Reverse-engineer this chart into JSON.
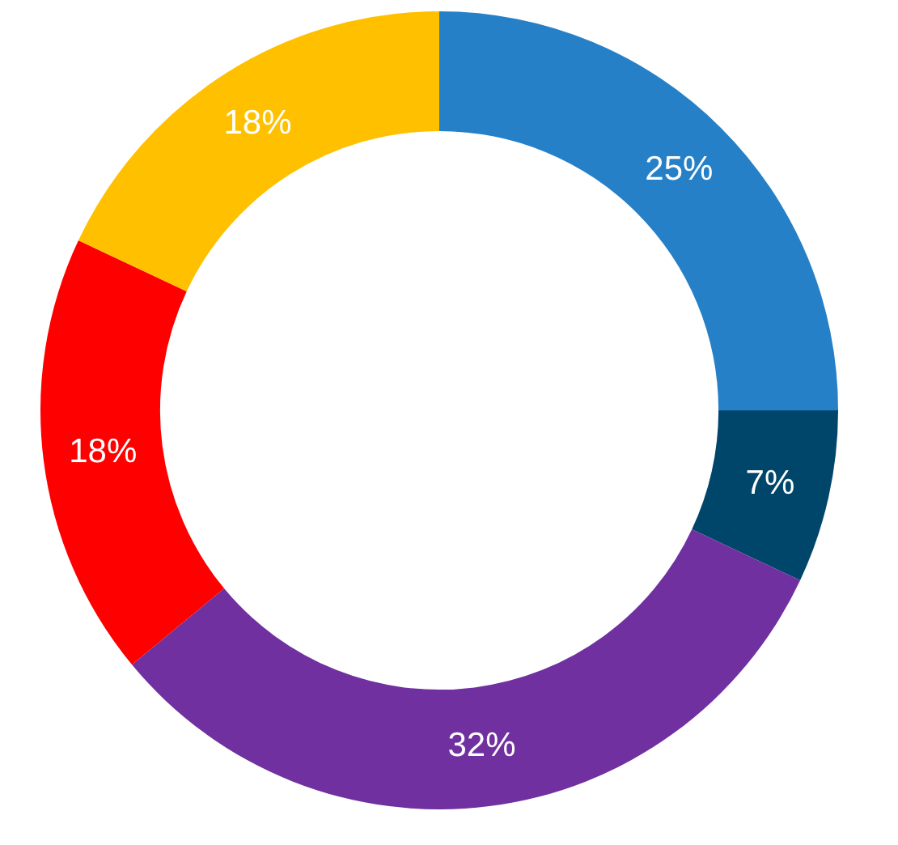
{
  "chart_data": {
    "type": "donut",
    "categories": [
      null,
      null,
      null,
      null,
      null
    ],
    "values": [
      25,
      7,
      32,
      18,
      18
    ],
    "colors": [
      "#2680c7",
      "#00466b",
      "#7030a0",
      "#ff0000",
      "#ffc000"
    ],
    "value_labels": [
      "25%",
      "7%",
      "32%",
      "18%",
      "18%"
    ],
    "legend": false
  }
}
